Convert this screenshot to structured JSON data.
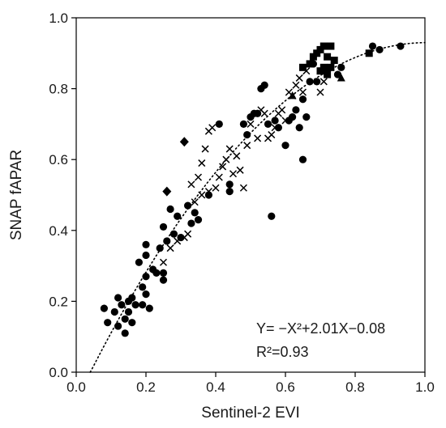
{
  "chart_data": {
    "type": "scatter",
    "title": "",
    "xlabel": "Sentinel-2 EVI",
    "ylabel": "SNAP fAPAR",
    "xlim": [
      0.0,
      1.0
    ],
    "ylim": [
      0.0,
      1.0
    ],
    "x_ticks": [
      "0.0",
      "0.2",
      "0.4",
      "0.6",
      "0.8",
      "1.0"
    ],
    "y_ticks": [
      "0.0",
      "0.2",
      "0.4",
      "0.6",
      "0.8",
      "1.0"
    ],
    "grid": false,
    "legend": "none",
    "equation_text": "Y= −X²+2.01X−0.08",
    "r2_text": "R²=0.93",
    "fit": {
      "style": "dotted",
      "a": -1.0,
      "b": 2.01,
      "c": -0.08,
      "x_range": [
        0.04,
        1.0
      ]
    },
    "series": [
      {
        "marker": "circle",
        "points": [
          [
            0.08,
            0.18
          ],
          [
            0.09,
            0.14
          ],
          [
            0.11,
            0.17
          ],
          [
            0.12,
            0.21
          ],
          [
            0.12,
            0.13
          ],
          [
            0.13,
            0.19
          ],
          [
            0.14,
            0.15
          ],
          [
            0.14,
            0.11
          ],
          [
            0.15,
            0.2
          ],
          [
            0.15,
            0.17
          ],
          [
            0.16,
            0.14
          ],
          [
            0.16,
            0.21
          ],
          [
            0.17,
            0.19
          ],
          [
            0.18,
            0.31
          ],
          [
            0.19,
            0.24
          ],
          [
            0.19,
            0.19
          ],
          [
            0.2,
            0.33
          ],
          [
            0.2,
            0.22
          ],
          [
            0.2,
            0.27
          ],
          [
            0.2,
            0.36
          ],
          [
            0.21,
            0.18
          ],
          [
            0.22,
            0.29
          ],
          [
            0.23,
            0.28
          ],
          [
            0.24,
            0.35
          ],
          [
            0.25,
            0.41
          ],
          [
            0.25,
            0.28
          ],
          [
            0.25,
            0.26
          ],
          [
            0.26,
            0.37
          ],
          [
            0.27,
            0.46
          ],
          [
            0.28,
            0.39
          ],
          [
            0.29,
            0.44
          ],
          [
            0.3,
            0.38
          ],
          [
            0.32,
            0.47
          ],
          [
            0.33,
            0.42
          ],
          [
            0.34,
            0.45
          ],
          [
            0.35,
            0.43
          ],
          [
            0.38,
            0.5
          ],
          [
            0.41,
            0.7
          ],
          [
            0.44,
            0.51
          ],
          [
            0.44,
            0.53
          ],
          [
            0.48,
            0.7
          ],
          [
            0.49,
            0.67
          ],
          [
            0.5,
            0.72
          ],
          [
            0.51,
            0.73
          ],
          [
            0.52,
            0.73
          ],
          [
            0.53,
            0.8
          ],
          [
            0.54,
            0.81
          ],
          [
            0.55,
            0.7
          ],
          [
            0.56,
            0.44
          ],
          [
            0.57,
            0.71
          ],
          [
            0.58,
            0.69
          ],
          [
            0.6,
            0.64
          ],
          [
            0.61,
            0.71
          ],
          [
            0.62,
            0.72
          ],
          [
            0.63,
            0.74
          ],
          [
            0.64,
            0.69
          ],
          [
            0.65,
            0.77
          ],
          [
            0.65,
            0.6
          ],
          [
            0.66,
            0.72
          ],
          [
            0.67,
            0.82
          ],
          [
            0.68,
            0.87
          ],
          [
            0.69,
            0.82
          ],
          [
            0.72,
            0.85
          ],
          [
            0.75,
            0.84
          ],
          [
            0.76,
            0.86
          ],
          [
            0.85,
            0.92
          ],
          [
            0.87,
            0.91
          ],
          [
            0.93,
            0.92
          ]
        ]
      },
      {
        "marker": "x",
        "points": [
          [
            0.25,
            0.31
          ],
          [
            0.27,
            0.35
          ],
          [
            0.29,
            0.37
          ],
          [
            0.31,
            0.38
          ],
          [
            0.32,
            0.39
          ],
          [
            0.33,
            0.53
          ],
          [
            0.34,
            0.48
          ],
          [
            0.35,
            0.55
          ],
          [
            0.36,
            0.59
          ],
          [
            0.36,
            0.5
          ],
          [
            0.37,
            0.63
          ],
          [
            0.38,
            0.68
          ],
          [
            0.38,
            0.51
          ],
          [
            0.39,
            0.69
          ],
          [
            0.4,
            0.52
          ],
          [
            0.41,
            0.55
          ],
          [
            0.42,
            0.58
          ],
          [
            0.43,
            0.6
          ],
          [
            0.44,
            0.63
          ],
          [
            0.45,
            0.56
          ],
          [
            0.46,
            0.61
          ],
          [
            0.47,
            0.57
          ],
          [
            0.48,
            0.52
          ],
          [
            0.49,
            0.64
          ],
          [
            0.5,
            0.7
          ],
          [
            0.52,
            0.66
          ],
          [
            0.53,
            0.74
          ],
          [
            0.54,
            0.73
          ],
          [
            0.55,
            0.66
          ],
          [
            0.56,
            0.67
          ],
          [
            0.57,
            0.69
          ],
          [
            0.58,
            0.73
          ],
          [
            0.59,
            0.74
          ],
          [
            0.6,
            0.71
          ],
          [
            0.61,
            0.79
          ],
          [
            0.62,
            0.78
          ],
          [
            0.63,
            0.81
          ],
          [
            0.64,
            0.83
          ],
          [
            0.65,
            0.79
          ],
          [
            0.66,
            0.85
          ],
          [
            0.7,
            0.79
          ],
          [
            0.71,
            0.82
          ]
        ]
      },
      {
        "marker": "square",
        "points": [
          [
            0.65,
            0.86
          ],
          [
            0.67,
            0.87
          ],
          [
            0.68,
            0.89
          ],
          [
            0.69,
            0.9
          ],
          [
            0.7,
            0.91
          ],
          [
            0.71,
            0.92
          ],
          [
            0.72,
            0.89
          ],
          [
            0.73,
            0.92
          ],
          [
            0.71,
            0.86
          ],
          [
            0.72,
            0.84
          ],
          [
            0.73,
            0.86
          ],
          [
            0.74,
            0.88
          ],
          [
            0.7,
            0.85
          ],
          [
            0.84,
            0.9
          ]
        ]
      },
      {
        "marker": "diamond",
        "points": [
          [
            0.31,
            0.65
          ],
          [
            0.26,
            0.51
          ]
        ]
      },
      {
        "marker": "triangle",
        "points": [
          [
            0.62,
            0.78
          ],
          [
            0.76,
            0.83
          ]
        ]
      }
    ]
  }
}
